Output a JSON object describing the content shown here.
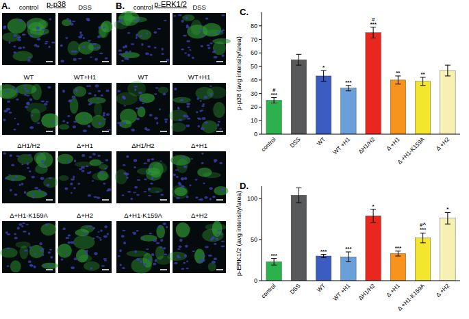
{
  "image_panels": [
    {
      "letter": "A.",
      "title": "p-p38",
      "labels": [
        "control",
        "DSS",
        "WT",
        "WT+H1",
        "ΔH1/H2",
        "Δ+H1",
        "Δ+H1-K159A",
        "Δ+H2"
      ]
    },
    {
      "letter": "B.",
      "title": "p-ERK1/2",
      "labels": [
        "control",
        "DSS",
        "WT",
        "WT+H1",
        "ΔH1/H2",
        "Δ+H1",
        "Δ+H1-K159A",
        "Δ+H2"
      ]
    }
  ],
  "chart_data": [
    {
      "type": "bar",
      "title": "C.",
      "y_label": "p-p38 (avg intensity/area)",
      "categories": [
        "control",
        "DSS",
        "WT",
        "WT +H1",
        "ΔH1/H2",
        "Δ +H1",
        "Δ +H1-K159A",
        "Δ +H2"
      ],
      "values": [
        25,
        55,
        43,
        34,
        75,
        40,
        39,
        47
      ],
      "errors": [
        2,
        4,
        4,
        2,
        4,
        3,
        3,
        4
      ],
      "annotations": [
        [
          "#",
          "***"
        ],
        null,
        [
          "*"
        ],
        [
          "***"
        ],
        [
          "#",
          "***"
        ],
        [
          "**"
        ],
        [
          "**"
        ],
        null
      ],
      "colors": [
        "#2bb24c",
        "#58595b",
        "#3b5cc0",
        "#6b9fd9",
        "#e8281e",
        "#f7941d",
        "#f4e62c",
        "#f6f1b3"
      ],
      "ylim": [
        0,
        90
      ],
      "yticks": [
        0,
        10,
        20,
        30,
        40,
        50,
        60,
        70,
        80
      ]
    },
    {
      "type": "bar",
      "title": "D.",
      "y_label": "p-ERK1/2 (avg intensity/area)",
      "categories": [
        "control",
        "DSS",
        "WT",
        "WT +H1",
        "ΔH1/H2",
        "Δ +H1",
        "Δ +H1-K159A",
        "Δ +H2"
      ],
      "values": [
        23,
        104,
        30,
        29,
        79,
        33,
        52,
        76
      ],
      "errors": [
        4,
        9,
        2,
        6,
        8,
        3,
        6,
        7
      ],
      "annotations": [
        [
          "***"
        ],
        null,
        [
          "***"
        ],
        [
          "***"
        ],
        [
          "*"
        ],
        [
          "***"
        ],
        [
          "#^",
          "***"
        ],
        [
          "*"
        ]
      ],
      "colors": [
        "#2bb24c",
        "#58595b",
        "#3b5cc0",
        "#6b9fd9",
        "#e8281e",
        "#f7941d",
        "#f4e62c",
        "#f6f1b3"
      ],
      "ylim": [
        0,
        115
      ],
      "yticks": [
        0,
        50,
        100
      ]
    }
  ]
}
